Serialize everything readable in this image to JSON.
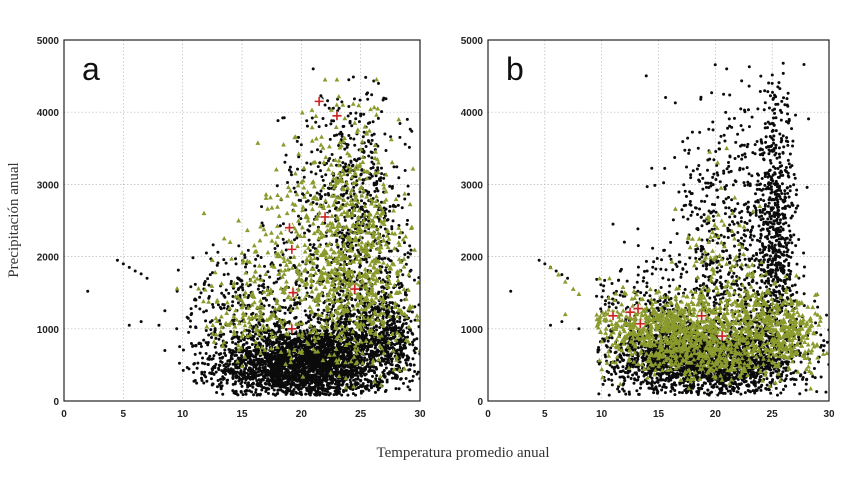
{
  "figure": {
    "xlabel": "Temperatura promedio anual",
    "ylabel": "Precipitación anual"
  },
  "colors": {
    "dense": "#0b0b0b",
    "sparse": "#3a3a3a",
    "green": "#8a9a2c",
    "marker": "#cc2222",
    "grid": "#b8b8b8"
  },
  "chart_data": [
    {
      "type": "scatter",
      "panel_label": "a",
      "xlim": [
        0,
        30
      ],
      "ylim": [
        0,
        5000
      ],
      "xticks": [
        "0",
        "5",
        "10",
        "15",
        "20",
        "25",
        "30"
      ],
      "yticks": [
        "0",
        "1000",
        "2000",
        "3000",
        "4000",
        "5000"
      ],
      "grid": true,
      "series": [
        {
          "marker": "dot",
          "color_key": "dense",
          "clusters": [
            {
              "cx": 20,
              "cy": 500,
              "sx": 3.6,
              "sy": 260,
              "n": 2600
            },
            {
              "cx": 24.5,
              "cy": 900,
              "sx": 2.6,
              "sy": 420,
              "n": 700
            },
            {
              "cx": 25.5,
              "cy": 2300,
              "sx": 1.8,
              "sy": 900,
              "n": 520
            },
            {
              "cx": 22.5,
              "cy": 2900,
              "sx": 2.2,
              "sy": 700,
              "n": 220
            },
            {
              "cx": 16,
              "cy": 1300,
              "sx": 3.2,
              "sy": 450,
              "n": 360
            },
            {
              "cx": 27.5,
              "cy": 900,
              "sx": 1.2,
              "sy": 300,
              "n": 220
            }
          ],
          "points": [
            [
              2,
              1520
            ],
            [
              4.5,
              1950
            ],
            [
              5,
              1900
            ],
            [
              5.5,
              1850
            ],
            [
              6,
              1800
            ],
            [
              6.5,
              1760
            ],
            [
              7,
              1700
            ],
            [
              5.5,
              1050
            ],
            [
              6.5,
              1100
            ],
            [
              8,
              1050
            ],
            [
              9.5,
              1000
            ],
            [
              8.5,
              1250
            ],
            [
              11,
              1400
            ],
            [
              12,
              1250
            ],
            [
              8.5,
              700
            ],
            [
              10.5,
              950
            ],
            [
              21,
              4600
            ],
            [
              24,
              4450
            ],
            [
              23.5,
              3600
            ],
            [
              26.5,
              4400
            ],
            [
              22,
              4100
            ],
            [
              25,
              3950
            ],
            [
              20,
              3550
            ],
            [
              19,
              3200
            ],
            [
              21.5,
              3800
            ],
            [
              25.5,
              4250
            ],
            [
              12,
              2050
            ],
            [
              13.5,
              1750
            ],
            [
              14.5,
              1900
            ],
            [
              18,
              2150
            ],
            [
              29.5,
              700
            ],
            [
              29,
              1250
            ],
            [
              28.5,
              1600
            ]
          ]
        },
        {
          "marker": "triangle",
          "color_key": "green",
          "clusters": [
            {
              "cx": 25,
              "cy": 1800,
              "sx": 2.2,
              "sy": 650,
              "n": 420
            },
            {
              "cx": 22.5,
              "cy": 1500,
              "sx": 3.5,
              "sy": 600,
              "n": 260
            },
            {
              "cx": 16,
              "cy": 1200,
              "sx": 2.6,
              "sy": 300,
              "n": 140
            },
            {
              "cx": 23.5,
              "cy": 2900,
              "sx": 2.0,
              "sy": 650,
              "n": 170
            },
            {
              "cx": 20,
              "cy": 2300,
              "sx": 2.5,
              "sy": 500,
              "n": 90
            }
          ],
          "points": [
            [
              11.8,
              2600
            ],
            [
              12.5,
              1950
            ],
            [
              13.5,
              2250
            ],
            [
              14,
              2200
            ],
            [
              15,
              2050
            ],
            [
              18.5,
              3550
            ],
            [
              19.5,
              3150
            ],
            [
              22,
              4450
            ],
            [
              23,
              4450
            ],
            [
              23.5,
              4100
            ],
            [
              24.5,
              3850
            ],
            [
              25.5,
              3700
            ],
            [
              18,
              2850
            ],
            [
              21,
              3300
            ],
            [
              26.5,
              3300
            ],
            [
              27,
              2500
            ],
            [
              27.5,
              1850
            ],
            [
              28,
              1500
            ]
          ]
        },
        {
          "marker": "cross",
          "color_key": "marker",
          "points": [
            [
              21.5,
              4150
            ],
            [
              23,
              3950
            ],
            [
              22,
              2550
            ],
            [
              19,
              2400
            ],
            [
              19.2,
              2100
            ],
            [
              19.3,
              1500
            ],
            [
              24.5,
              1550
            ],
            [
              19.2,
              1000
            ]
          ]
        }
      ]
    },
    {
      "type": "scatter",
      "panel_label": "b",
      "xlim": [
        0,
        30
      ],
      "ylim": [
        0,
        5000
      ],
      "xticks": [
        "0",
        "5",
        "10",
        "15",
        "20",
        "25",
        "30"
      ],
      "yticks": [
        "0",
        "1000",
        "2000",
        "3000",
        "4000",
        "5000"
      ],
      "grid": true,
      "series": [
        {
          "marker": "dot",
          "color_key": "dense",
          "clusters": [
            {
              "cx": 19,
              "cy": 550,
              "sx": 4.2,
              "sy": 250,
              "n": 1900
            },
            {
              "cx": 25.3,
              "cy": 2200,
              "sx": 0.9,
              "sy": 1000,
              "n": 650
            },
            {
              "cx": 22,
              "cy": 1500,
              "sx": 3.0,
              "sy": 700,
              "n": 500
            },
            {
              "cx": 21,
              "cy": 2900,
              "sx": 2.5,
              "sy": 800,
              "n": 260
            },
            {
              "cx": 15,
              "cy": 1200,
              "sx": 3.0,
              "sy": 400,
              "n": 260
            }
          ],
          "points": [
            [
              2,
              1520
            ],
            [
              4.5,
              1950
            ],
            [
              5,
              1900
            ],
            [
              5.5,
              1850
            ],
            [
              6,
              1800
            ],
            [
              6.5,
              1750
            ],
            [
              7,
              1700
            ],
            [
              5.5,
              1050
            ],
            [
              6.5,
              1100
            ],
            [
              8,
              1000
            ],
            [
              11,
              2450
            ],
            [
              12,
              2200
            ],
            [
              14,
              1800
            ],
            [
              21,
              4600
            ],
            [
              24,
              4500
            ],
            [
              25,
              4400
            ],
            [
              25.5,
              4350
            ],
            [
              23,
              3800
            ],
            [
              26,
              4200
            ],
            [
              26.5,
              3900
            ],
            [
              18.5,
              3500
            ],
            [
              19.5,
              3350
            ],
            [
              29.5,
              700
            ],
            [
              29,
              1300
            ]
          ]
        },
        {
          "marker": "triangle",
          "color_key": "green",
          "clusters": [
            {
              "cx": 16,
              "cy": 1050,
              "sx": 4.0,
              "sy": 220,
              "n": 650
            },
            {
              "cx": 19,
              "cy": 650,
              "sx": 3.5,
              "sy": 180,
              "n": 380
            },
            {
              "cx": 26.5,
              "cy": 950,
              "sx": 1.6,
              "sy": 250,
              "n": 220
            },
            {
              "cx": 23.5,
              "cy": 1150,
              "sx": 2.0,
              "sy": 280,
              "n": 180
            },
            {
              "cx": 20,
              "cy": 1900,
              "sx": 1.8,
              "sy": 450,
              "n": 90
            }
          ],
          "points": [
            [
              5.5,
              1850
            ],
            [
              6.2,
              1750
            ],
            [
              6.8,
              1650
            ],
            [
              7.5,
              1550
            ],
            [
              8,
              1480
            ],
            [
              6.8,
              1200
            ],
            [
              12,
              1500
            ],
            [
              13,
              1300
            ],
            [
              19.5,
              3450
            ],
            [
              20.2,
              3300
            ],
            [
              21,
              3500
            ],
            [
              20.5,
              2950
            ],
            [
              21.5,
              2600
            ],
            [
              28.5,
              700
            ],
            [
              29,
              600
            ],
            [
              29.5,
              650
            ]
          ]
        },
        {
          "marker": "cross",
          "color_key": "marker",
          "points": [
            [
              11,
              1180
            ],
            [
              12.5,
              1230
            ],
            [
              13.2,
              1280
            ],
            [
              13.4,
              1070
            ],
            [
              18.8,
              1180
            ],
            [
              20.6,
              900
            ]
          ]
        }
      ]
    }
  ]
}
